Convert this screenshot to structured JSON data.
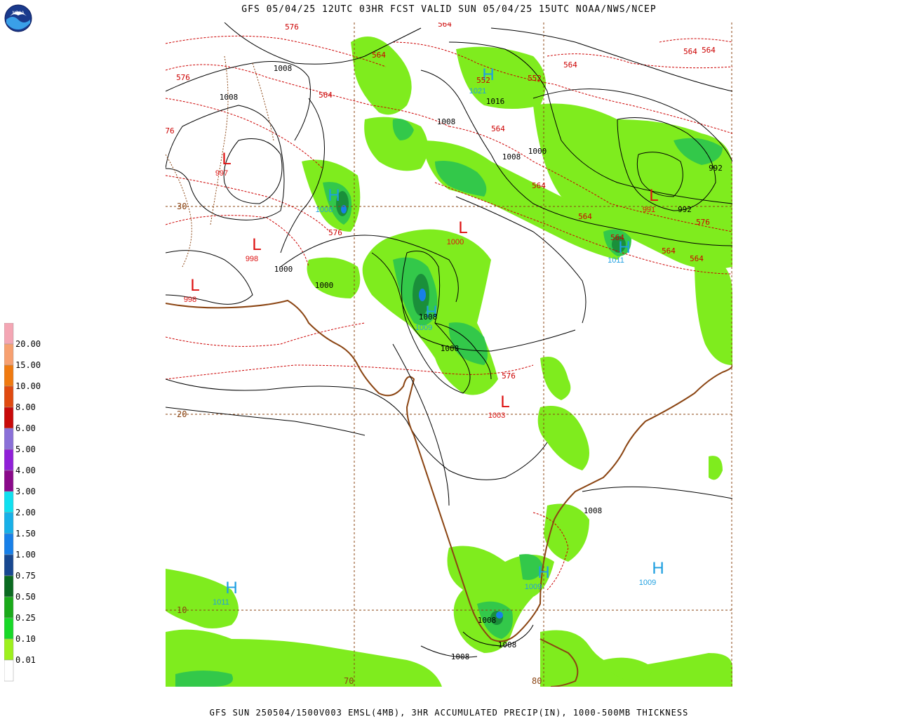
{
  "header": {
    "title": "GFS 05/04/25 12UTC 03HR FCST VALID SUN 05/04/25 15UTC NOAA/NWS/NCEP"
  },
  "footer": {
    "caption": "GFS SUN 250504/1500V003 EMSL(4MB), 3HR ACCUMULATED PRECIP(IN), 1000-500MB THICKNESS"
  },
  "logo": {
    "text": "NOAA",
    "icon": "noaa-logo"
  },
  "colors": {
    "pressure_contour": "#000000",
    "thickness_contour": "#cc0000",
    "coastline": "#8b4513",
    "grid": "#8b4513",
    "high_symbol": "#1e9fe0",
    "low_symbol": "#dd1111",
    "precip_light": "#7fec1e",
    "precip_mid": "#33c84a",
    "precip_heavy": "#1a8f3a"
  },
  "legend": {
    "levels": [
      {
        "label": "20.00",
        "color": "#f4a6b4"
      },
      {
        "label": "15.00",
        "color": "#f7a070"
      },
      {
        "label": "10.00",
        "color": "#f07a10"
      },
      {
        "label": "8.00",
        "color": "#e04a10"
      },
      {
        "label": "6.00",
        "color": "#c80a0a"
      },
      {
        "label": "5.00",
        "color": "#8a70d8"
      },
      {
        "label": "4.00",
        "color": "#9020d8"
      },
      {
        "label": "3.00",
        "color": "#8a0a8a"
      },
      {
        "label": "2.00",
        "color": "#10e0f0"
      },
      {
        "label": "1.50",
        "color": "#18b0e8"
      },
      {
        "label": "1.00",
        "color": "#1880e8"
      },
      {
        "label": "0.75",
        "color": "#184890"
      },
      {
        "label": "0.50",
        "color": "#0a6a20"
      },
      {
        "label": "0.25",
        "color": "#1aaa1a"
      },
      {
        "label": "0.10",
        "color": "#18d828"
      },
      {
        "label": "0.01",
        "color": "#9ef01e"
      },
      {
        "label": "",
        "color": "#ffffff"
      }
    ]
  },
  "grid_labels": {
    "lat": [
      "30",
      "20",
      "10"
    ],
    "lon": [
      "70",
      "80"
    ]
  },
  "pressure_centers": [
    {
      "type": "L",
      "value": "997"
    },
    {
      "type": "L",
      "value": "998"
    },
    {
      "type": "L",
      "value": "998"
    },
    {
      "type": "L",
      "value": "1000"
    },
    {
      "type": "L",
      "value": "1003"
    },
    {
      "type": "L",
      "value": "991"
    },
    {
      "type": "H",
      "value": "1008"
    },
    {
      "type": "H",
      "value": "1021"
    },
    {
      "type": "H",
      "value": "1009"
    },
    {
      "type": "H",
      "value": "1011"
    },
    {
      "type": "H",
      "value": "1011"
    },
    {
      "type": "H",
      "value": "1009"
    },
    {
      "type": "H",
      "value": "1009"
    }
  ],
  "isobar_labels": [
    "1008",
    "1008",
    "1016",
    "1008",
    "1008",
    "1000",
    "1000",
    "1000",
    "992",
    "992",
    "1008",
    "1008",
    "1008",
    "1008",
    "1008",
    "1008"
  ],
  "thickness_labels": [
    "576",
    "564",
    "576",
    "76",
    "564",
    "564",
    "552",
    "552",
    "564",
    "564",
    "564",
    "564",
    "576",
    "564",
    "564",
    "564",
    "564",
    "576",
    "576",
    "564"
  ]
}
